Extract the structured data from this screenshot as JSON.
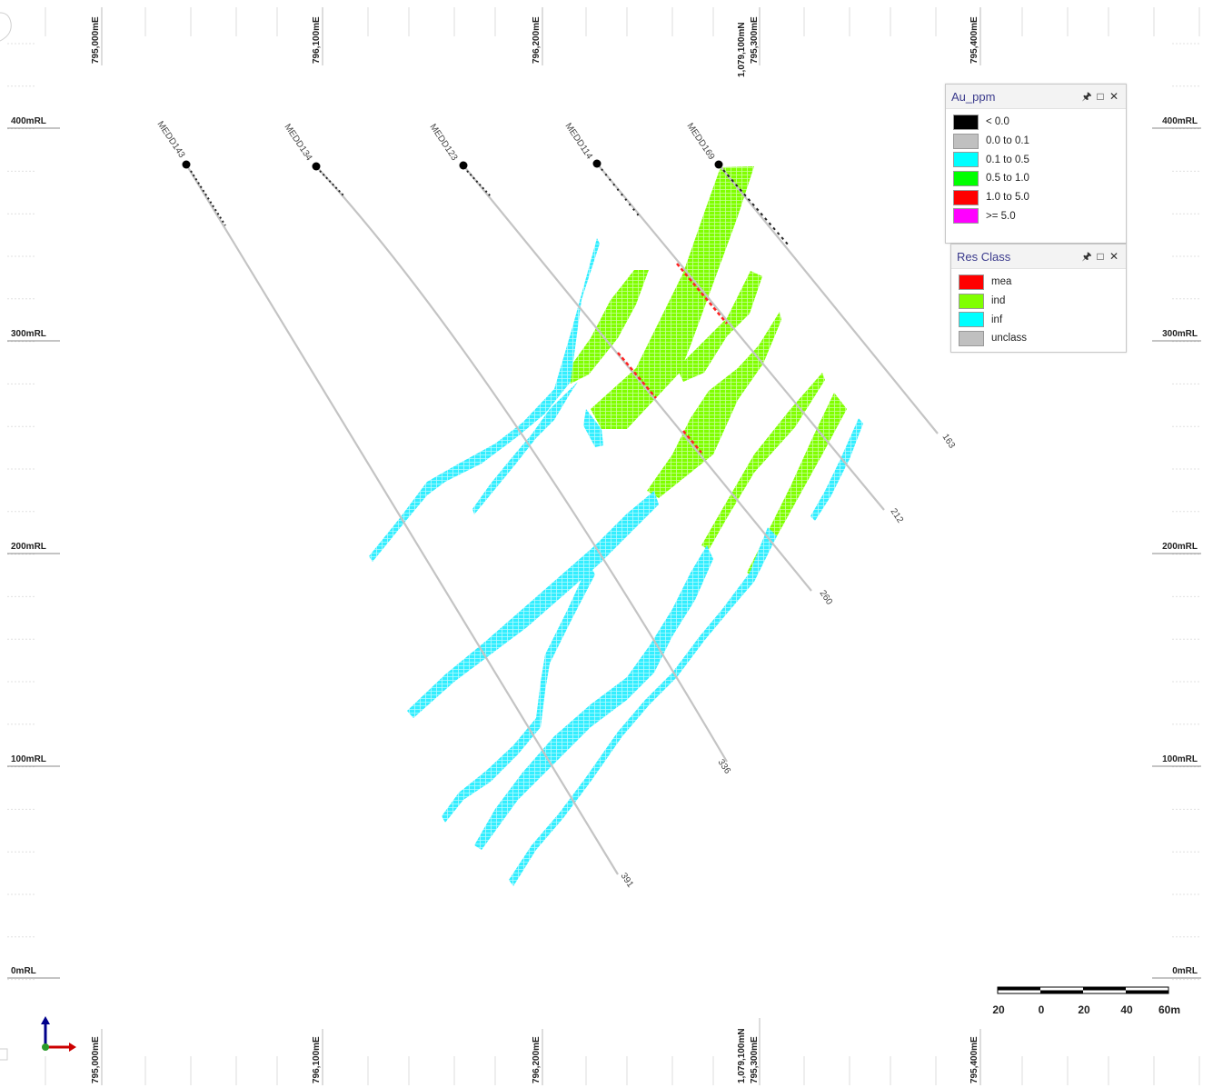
{
  "grid": {
    "easting_top": [
      "795,000mE",
      "796,100mE",
      "796,200mE",
      "1,079,100mN",
      "795,300mE",
      "795,400mE"
    ],
    "easting_bottom": [
      "795,000mE",
      "796,100mE",
      "796,200mE",
      "1,079,100mN",
      "795,300mE",
      "795,400mE"
    ],
    "rl_labels": [
      "400mRL",
      "300mRL",
      "200mRL",
      "100mRL",
      "0mRL"
    ]
  },
  "drillholes": [
    {
      "name": "MEDD143",
      "depth": "391"
    },
    {
      "name": "MEDD134",
      "depth": "336"
    },
    {
      "name": "MEDD123",
      "depth": "260"
    },
    {
      "name": "MEDD114",
      "depth": "212"
    },
    {
      "name": "MEDD169",
      "depth": "163"
    }
  ],
  "legend_au": {
    "title": "Au_ppm",
    "items": [
      {
        "label": "< 0.0",
        "color": "#000000"
      },
      {
        "label": "0.0 to 0.1",
        "color": "#c0c0c0"
      },
      {
        "label": "0.1 to 0.5",
        "color": "#00ffff"
      },
      {
        "label": "0.5 to 1.0",
        "color": "#00ff00"
      },
      {
        "label": "1.0 to 5.0",
        "color": "#ff0000"
      },
      {
        "label": ">= 5.0",
        "color": "#ff00ff"
      }
    ]
  },
  "legend_res": {
    "title": "Res Class",
    "items": [
      {
        "label": "mea",
        "color": "#ff0000"
      },
      {
        "label": "ind",
        "color": "#80ff00"
      },
      {
        "label": "inf",
        "color": "#00ffff"
      },
      {
        "label": "unclass",
        "color": "#c0c0c0"
      }
    ]
  },
  "scale_bar": {
    "labels": [
      "20",
      "0",
      "20",
      "40",
      "60m"
    ]
  },
  "colors": {
    "ind": "#80ff00",
    "inf": "#33eeff",
    "trace": "#c4c4c4",
    "grid_line": "#d8d8d8"
  },
  "icons": [
    "axis-triad-icon",
    "pin-icon",
    "maximize-icon",
    "close-icon"
  ]
}
